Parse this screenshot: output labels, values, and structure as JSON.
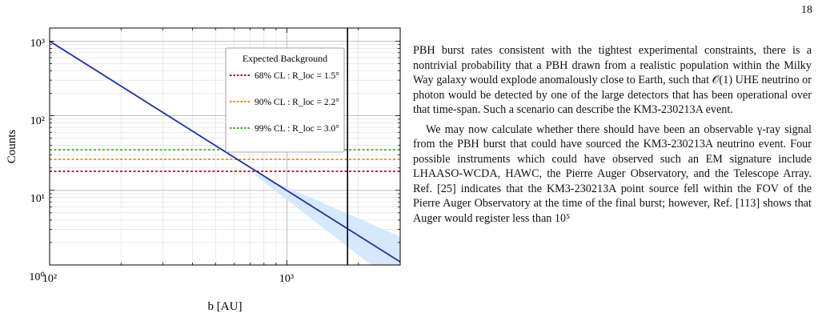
{
  "page": {
    "number": "18",
    "paragraphs": [
      "PBH burst rates consistent with the tightest experimental constraints, there is a nontrivial probability that a PBH drawn from a realistic population within the Milky Way galaxy would explode anomalously close to Earth, such that 𝒪(1) UHE neutrino or photon would be detected by one of the large detectors that has been operational over that time-span. Such a scenario can describe the KM3-230213A event.",
      "We may now calculate whether there should have been an observable γ-ray signal from the PBH burst that could have sourced the KM3-230213A neutrino event. Four possible instruments which could have observed such an EM signature include LHAASO-WCDA, HAWC, the Pierre Auger Observatory, and the Telescope Array. Ref. [25] indicates that the KM3-230213A point source fell within the FOV of the Pierre Auger Observatory at the time of the final burst; however, Ref. [113] shows that Auger would register less than 10⁵"
    ]
  },
  "chart_data": {
    "type": "line",
    "xscale": "log",
    "yscale": "log",
    "xlim": [
      100,
      3000
    ],
    "ylim": [
      1,
      1500
    ],
    "xlabel": "b [AU]",
    "ylabel": "Counts",
    "xtick_labels": [
      "10²",
      "10³"
    ],
    "ytick_labels": [
      "10⁰",
      "10¹",
      "10²",
      "10³"
    ],
    "grid": true,
    "series": [
      {
        "x": [
          100,
          3000
        ],
        "y": [
          1000,
          1.1
        ],
        "color": "#1f2fa8",
        "band": {
          "x": [
            700,
            3000
          ],
          "upper": [
            18,
            2.4
          ],
          "lower": [
            18,
            0.5
          ],
          "color": "#d6e8fb"
        }
      }
    ],
    "background_levels": [
      {
        "name": "68% CL : R_loc = 1.5°",
        "y": 18,
        "color": "#a01a1a"
      },
      {
        "name": "90% CL : R_loc = 2.2°",
        "y": 26,
        "color": "#e8891c"
      },
      {
        "name": "99% CL : R_loc = 3.0°",
        "y": 35,
        "color": "#3fa82a"
      }
    ],
    "vertical_line": {
      "x": 1800,
      "color": "#000000"
    },
    "legend": {
      "title": "Expected Background",
      "placement": "top-right"
    }
  }
}
